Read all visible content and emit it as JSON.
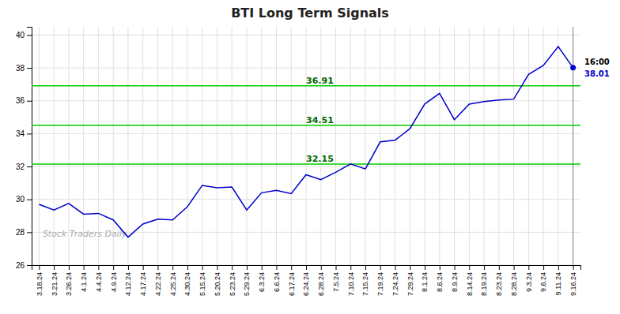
{
  "chart_data": {
    "type": "line",
    "title": "BTI Long Term Signals",
    "watermark": "Stock Traders Daily",
    "categories": [
      "3.18.24",
      "3.21.24",
      "3.26.24",
      "4.1.24",
      "4.4.24",
      "4.9.24",
      "4.12.24",
      "4.17.24",
      "4.22.24",
      "4.25.24",
      "4.30.24",
      "5.15.24",
      "5.20.24",
      "5.23.24",
      "5.29.24",
      "6.3.24",
      "6.6.24",
      "6.17.24",
      "6.24.24",
      "6.28.24",
      "7.5.24",
      "7.10.24",
      "7.15.24",
      "7.19.24",
      "7.24.24",
      "7.29.24",
      "8.1.24",
      "8.6.24",
      "8.9.24",
      "8.14.24",
      "8.19.24",
      "8.23.24",
      "8.28.24",
      "9.3.24",
      "9.6.24",
      "9.11.24",
      "9.16.24"
    ],
    "values": [
      29.7,
      29.35,
      29.75,
      29.1,
      29.15,
      28.75,
      27.7,
      28.5,
      28.8,
      28.75,
      29.55,
      30.85,
      30.7,
      30.75,
      29.35,
      30.4,
      30.55,
      30.35,
      31.5,
      31.2,
      31.65,
      32.15,
      31.85,
      33.5,
      33.6,
      34.3,
      35.8,
      36.45,
      34.85,
      35.8,
      35.95,
      36.05,
      36.1,
      37.6,
      38.15,
      39.3,
      38.01
    ],
    "color": "#0000cc",
    "horizontal_lines": [
      {
        "value": 32.15,
        "label": "32.15",
        "color": "#00cc00"
      },
      {
        "value": 34.51,
        "label": "34.51",
        "color": "#00cc00"
      },
      {
        "value": 36.91,
        "label": "36.91",
        "color": "#00cc00"
      }
    ],
    "annotations": [
      {
        "text": "16:00",
        "color": "#000000"
      },
      {
        "text": "38.01",
        "color": "#0000cc"
      }
    ],
    "ylim": [
      26,
      40.5
    ],
    "yticks": [
      26,
      28,
      30,
      32,
      34,
      36,
      38,
      40
    ],
    "grid": true
  }
}
